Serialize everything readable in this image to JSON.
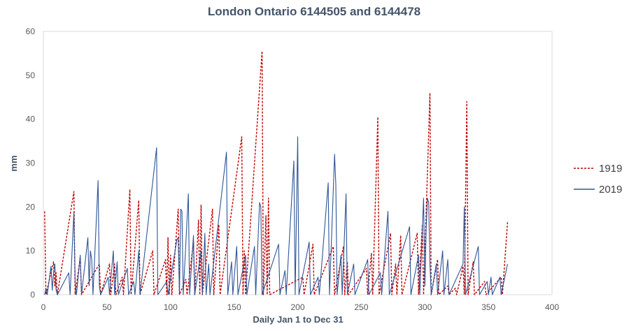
{
  "chart_data": {
    "type": "line",
    "title": "London Ontario 6144505 and 6144478",
    "xlabel": "Daily Jan 1 to Dec 31",
    "ylabel": "mm",
    "xlim": [
      0,
      400
    ],
    "ylim": [
      0,
      60
    ],
    "x_ticks": [
      0,
      50,
      100,
      150,
      200,
      250,
      300,
      350,
      400
    ],
    "y_ticks": [
      0,
      10,
      20,
      30,
      40,
      50,
      60
    ],
    "grid": false,
    "legend_position": "right",
    "series": [
      {
        "name": "1919",
        "color": "#c00000",
        "style": "dashed",
        "points": [
          [
            1,
            19
          ],
          [
            2,
            0
          ],
          [
            8,
            7.5
          ],
          [
            9,
            2
          ],
          [
            10,
            5
          ],
          [
            11,
            0
          ],
          [
            24,
            23.5
          ],
          [
            25,
            0
          ],
          [
            29,
            8.5
          ],
          [
            30,
            0
          ],
          [
            44,
            7
          ],
          [
            45,
            0
          ],
          [
            52,
            7
          ],
          [
            53,
            0
          ],
          [
            56,
            7
          ],
          [
            57,
            0
          ],
          [
            62,
            4
          ],
          [
            63,
            0
          ],
          [
            68,
            24
          ],
          [
            69,
            0
          ],
          [
            75,
            21.5
          ],
          [
            76,
            0
          ],
          [
            86,
            10
          ],
          [
            87,
            0
          ],
          [
            96,
            8
          ],
          [
            97,
            0
          ],
          [
            98,
            13
          ],
          [
            99,
            0
          ],
          [
            100,
            9
          ],
          [
            101,
            0
          ],
          [
            106,
            19.5
          ],
          [
            107,
            0
          ],
          [
            112,
            3.5
          ],
          [
            113,
            0
          ],
          [
            118,
            12
          ],
          [
            119,
            0
          ],
          [
            122,
            17
          ],
          [
            123,
            0
          ],
          [
            124,
            20.5
          ],
          [
            125,
            0
          ],
          [
            133,
            19.5
          ],
          [
            134,
            0
          ],
          [
            138,
            16
          ],
          [
            139,
            0
          ],
          [
            156,
            36
          ],
          [
            157,
            0
          ],
          [
            158,
            10
          ],
          [
            159,
            0
          ],
          [
            172,
            55.5
          ],
          [
            173,
            0
          ],
          [
            175,
            18
          ],
          [
            176,
            0
          ],
          [
            177,
            22
          ],
          [
            178,
            0
          ],
          [
            204,
            4
          ],
          [
            205,
            0
          ],
          [
            212,
            11.5
          ],
          [
            213,
            0
          ],
          [
            228,
            11
          ],
          [
            229,
            0
          ],
          [
            236,
            11
          ],
          [
            237,
            0
          ],
          [
            239,
            7.5
          ],
          [
            240,
            0
          ],
          [
            254,
            6
          ],
          [
            255,
            0
          ],
          [
            258,
            9.5
          ],
          [
            259,
            0
          ],
          [
            263,
            40.5
          ],
          [
            264,
            0
          ],
          [
            273,
            14
          ],
          [
            274,
            0
          ],
          [
            277,
            7
          ],
          [
            278,
            0
          ],
          [
            281,
            13.5
          ],
          [
            282,
            0
          ],
          [
            294,
            14
          ],
          [
            295,
            0
          ],
          [
            298,
            16
          ],
          [
            299,
            0
          ],
          [
            304,
            46
          ],
          [
            305,
            0
          ],
          [
            310,
            8
          ],
          [
            311,
            0
          ],
          [
            318,
            2
          ],
          [
            319,
            0
          ],
          [
            324,
            1.5
          ],
          [
            325,
            0
          ],
          [
            330,
            6.5
          ],
          [
            331,
            0
          ],
          [
            333,
            44
          ],
          [
            334,
            0
          ],
          [
            338,
            7.5
          ],
          [
            339,
            0
          ],
          [
            347,
            3
          ],
          [
            348,
            0
          ],
          [
            360,
            4
          ],
          [
            361,
            0
          ],
          [
            365,
            16.5
          ]
        ]
      },
      {
        "name": "2019",
        "color": "#2f5597",
        "style": "solid",
        "points": [
          [
            1,
            0
          ],
          [
            2,
            1.5
          ],
          [
            3,
            0
          ],
          [
            6,
            6.5
          ],
          [
            7,
            1
          ],
          [
            8,
            5
          ],
          [
            9,
            7
          ],
          [
            10,
            1
          ],
          [
            11,
            0
          ],
          [
            20,
            5
          ],
          [
            21,
            0
          ],
          [
            24,
            19
          ],
          [
            25,
            3
          ],
          [
            26,
            0
          ],
          [
            29,
            9
          ],
          [
            30,
            0
          ],
          [
            35,
            13
          ],
          [
            36,
            2
          ],
          [
            37,
            10
          ],
          [
            38,
            8
          ],
          [
            39,
            0
          ],
          [
            43,
            26
          ],
          [
            44,
            2
          ],
          [
            45,
            0
          ],
          [
            51,
            4
          ],
          [
            52,
            0
          ],
          [
            55,
            10
          ],
          [
            56,
            0
          ],
          [
            58,
            7.5
          ],
          [
            59,
            0
          ],
          [
            66,
            6
          ],
          [
            67,
            0
          ],
          [
            71,
            3
          ],
          [
            72,
            0
          ],
          [
            75,
            10
          ],
          [
            76,
            0
          ],
          [
            89,
            33.5
          ],
          [
            90,
            0
          ],
          [
            97,
            3
          ],
          [
            98,
            0
          ],
          [
            105,
            12.5
          ],
          [
            106,
            13
          ],
          [
            107,
            0
          ],
          [
            108,
            19.5
          ],
          [
            109,
            19
          ],
          [
            110,
            0
          ],
          [
            114,
            23
          ],
          [
            115,
            0
          ],
          [
            118,
            13.5
          ],
          [
            119,
            0
          ],
          [
            124,
            10
          ],
          [
            125,
            0
          ],
          [
            127,
            14
          ],
          [
            128,
            0
          ],
          [
            130,
            7
          ],
          [
            131,
            0
          ],
          [
            144,
            32.5
          ],
          [
            145,
            0
          ],
          [
            148,
            7.5
          ],
          [
            149,
            0
          ],
          [
            152,
            11
          ],
          [
            153,
            0
          ],
          [
            159,
            9
          ],
          [
            160,
            0
          ],
          [
            166,
            11
          ],
          [
            167,
            0
          ],
          [
            170,
            21
          ],
          [
            171,
            20
          ],
          [
            172,
            0
          ],
          [
            185,
            11.5
          ],
          [
            186,
            0
          ],
          [
            190,
            5.5
          ],
          [
            191,
            0
          ],
          [
            197,
            30.5
          ],
          [
            198,
            0
          ],
          [
            200,
            36
          ],
          [
            201,
            0
          ],
          [
            209,
            12
          ],
          [
            210,
            0
          ],
          [
            216,
            4
          ],
          [
            217,
            0
          ],
          [
            224,
            25.5
          ],
          [
            225,
            0
          ],
          [
            229,
            32
          ],
          [
            230,
            25
          ],
          [
            231,
            0
          ],
          [
            234,
            9
          ],
          [
            235,
            0
          ],
          [
            238,
            23
          ],
          [
            239,
            0
          ],
          [
            244,
            7
          ],
          [
            245,
            0
          ],
          [
            255,
            8
          ],
          [
            256,
            0
          ],
          [
            265,
            5
          ],
          [
            266,
            0
          ],
          [
            271,
            19
          ],
          [
            272,
            0
          ],
          [
            288,
            15.5
          ],
          [
            289,
            0
          ],
          [
            295,
            9
          ],
          [
            296,
            0
          ],
          [
            299,
            22
          ],
          [
            300,
            2
          ],
          [
            301,
            15
          ],
          [
            302,
            22
          ],
          [
            303,
            21
          ],
          [
            304,
            7
          ],
          [
            305,
            0
          ],
          [
            309,
            7
          ],
          [
            310,
            0
          ],
          [
            314,
            10
          ],
          [
            315,
            0
          ],
          [
            318,
            8
          ],
          [
            319,
            0
          ],
          [
            330,
            7
          ],
          [
            331,
            20
          ],
          [
            332,
            0
          ],
          [
            342,
            11
          ],
          [
            343,
            0
          ],
          [
            349,
            3
          ],
          [
            350,
            0
          ],
          [
            352,
            4
          ],
          [
            353,
            0
          ],
          [
            359,
            4
          ],
          [
            360,
            0
          ],
          [
            365,
            7
          ]
        ]
      }
    ]
  }
}
